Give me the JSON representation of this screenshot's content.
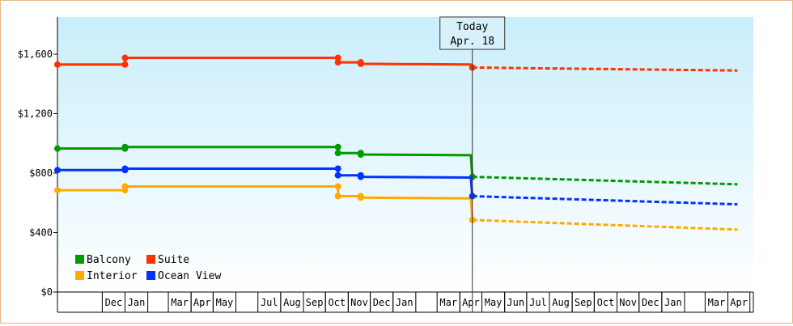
{
  "chart_data": {
    "type": "line",
    "ylim": [
      0,
      1850
    ],
    "yticks": [
      {
        "value": 0,
        "label": "$0"
      },
      {
        "value": 400,
        "label": "$400"
      },
      {
        "value": 800,
        "label": "$800"
      },
      {
        "value": 1200,
        "label": "$1,200"
      },
      {
        "value": 1600,
        "label": "$1,600"
      }
    ],
    "x_axis": {
      "start": "2014-10-01",
      "end": "2016-04-15",
      "months": [
        {
          "label": "Dec",
          "date": "2014-12-01"
        },
        {
          "label": "Jan",
          "date": "2015-01-01"
        },
        {
          "label": "Mar",
          "date": "2015-03-01"
        },
        {
          "label": "Apr",
          "date": "2015-04-01"
        },
        {
          "label": "May",
          "date": "2015-05-01"
        },
        {
          "label": "Jul",
          "date": "2015-07-01"
        },
        {
          "label": "Aug",
          "date": "2015-08-01"
        },
        {
          "label": "Sep",
          "date": "2015-09-01"
        },
        {
          "label": "Oct",
          "date": "2015-10-01"
        },
        {
          "label": "Nov",
          "date": "2015-11-01"
        },
        {
          "label": "Dec",
          "date": "2015-12-01"
        },
        {
          "label": "Jan",
          "date": "2016-01-01"
        },
        {
          "label": "Mar",
          "date": "2016-03-01"
        },
        {
          "label": "Apr",
          "date": "2016-04-01"
        },
        {
          "label": "May",
          "date": "2016-05-01"
        },
        {
          "label": "Jun",
          "date": "2016-06-01"
        },
        {
          "label": "Jul",
          "date": "2016-07-01"
        },
        {
          "label": "Aug",
          "date": "2016-08-01"
        },
        {
          "label": "Sep",
          "date": "2016-09-01"
        },
        {
          "label": "Oct",
          "date": "2016-10-01"
        },
        {
          "label": "Nov",
          "date": "2016-11-01"
        },
        {
          "label": "Dec",
          "date": "2016-12-01"
        },
        {
          "label": "Jan",
          "date": "2017-01-01"
        },
        {
          "label": "Mar",
          "date": "2017-03-01"
        },
        {
          "label": "Apr",
          "date": "2017-04-01"
        }
      ]
    },
    "today": {
      "date": "2016-04-18",
      "line1": "Today",
      "line2": "Apr. 18"
    },
    "legend": {
      "placement": "bottom-left"
    },
    "series": [
      {
        "name": "Balcony",
        "color": "#009900",
        "history": [
          {
            "date": "2014-10-01",
            "value": 965
          },
          {
            "date": "2015-01-01",
            "value": 965
          },
          {
            "date": "2015-01-01",
            "value": 975
          },
          {
            "date": "2015-10-18",
            "value": 975
          },
          {
            "date": "2015-10-18",
            "value": 935
          },
          {
            "date": "2015-11-18",
            "value": 935
          },
          {
            "date": "2015-11-18",
            "value": 925
          },
          {
            "date": "2016-04-16",
            "value": 920
          },
          {
            "date": "2016-04-18",
            "value": 775
          }
        ],
        "forecast": [
          {
            "date": "2016-04-18",
            "value": 775
          },
          {
            "date": "2017-04-14",
            "value": 725
          }
        ]
      },
      {
        "name": "Suite",
        "color": "#ff3300",
        "history": [
          {
            "date": "2014-10-01",
            "value": 1530
          },
          {
            "date": "2015-01-01",
            "value": 1530
          },
          {
            "date": "2015-01-01",
            "value": 1575
          },
          {
            "date": "2015-10-18",
            "value": 1575
          },
          {
            "date": "2015-10-18",
            "value": 1545
          },
          {
            "date": "2015-11-18",
            "value": 1545
          },
          {
            "date": "2015-11-18",
            "value": 1535
          },
          {
            "date": "2016-04-16",
            "value": 1530
          },
          {
            "date": "2016-04-18",
            "value": 1510
          }
        ],
        "forecast": [
          {
            "date": "2016-04-18",
            "value": 1510
          },
          {
            "date": "2017-04-14",
            "value": 1490
          }
        ]
      },
      {
        "name": "Interior",
        "color": "#ffaa00",
        "history": [
          {
            "date": "2014-10-01",
            "value": 685
          },
          {
            "date": "2015-01-01",
            "value": 685
          },
          {
            "date": "2015-01-01",
            "value": 710
          },
          {
            "date": "2015-10-18",
            "value": 710
          },
          {
            "date": "2015-10-18",
            "value": 645
          },
          {
            "date": "2015-11-18",
            "value": 645
          },
          {
            "date": "2015-11-18",
            "value": 635
          },
          {
            "date": "2016-04-16",
            "value": 630
          },
          {
            "date": "2016-04-18",
            "value": 485
          }
        ],
        "forecast": [
          {
            "date": "2016-04-18",
            "value": 485
          },
          {
            "date": "2017-04-14",
            "value": 420
          }
        ]
      },
      {
        "name": "Ocean View",
        "color": "#0033ff",
        "history": [
          {
            "date": "2014-10-01",
            "value": 820
          },
          {
            "date": "2015-01-01",
            "value": 820
          },
          {
            "date": "2015-01-01",
            "value": 830
          },
          {
            "date": "2015-10-18",
            "value": 830
          },
          {
            "date": "2015-10-18",
            "value": 785
          },
          {
            "date": "2015-11-18",
            "value": 785
          },
          {
            "date": "2015-11-18",
            "value": 775
          },
          {
            "date": "2016-04-16",
            "value": 770
          },
          {
            "date": "2016-04-18",
            "value": 645
          }
        ],
        "forecast": [
          {
            "date": "2016-04-18",
            "value": 645
          },
          {
            "date": "2017-04-14",
            "value": 590
          }
        ]
      }
    ]
  }
}
